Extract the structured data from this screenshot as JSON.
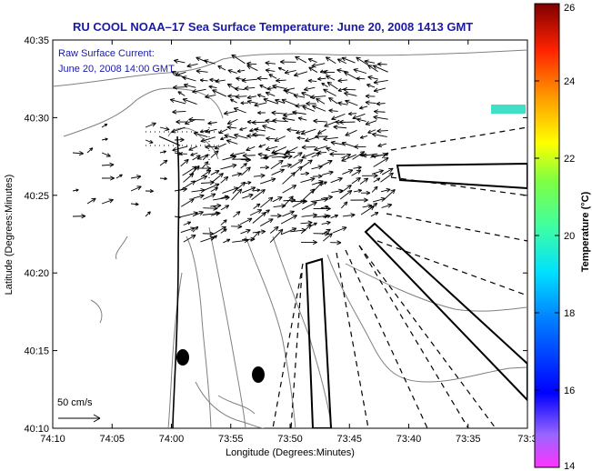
{
  "title": "RU COOL   NOAA–17  Sea Surface Temperature:  June 20, 2008 1413 GMT",
  "legend": {
    "line1": "Raw Surface Current:",
    "line2": "June 20, 2008 14:00 GMT"
  },
  "scale_bar_label": "50 cm/s",
  "axes": {
    "xlabel": "Longitude (Degrees:Minutes)",
    "ylabel": "Latitude (Degrees:Minutes)",
    "x_ticks": [
      "74:10",
      "74:05",
      "74:00",
      "73:55",
      "73:50",
      "73:45",
      "73:40",
      "73:35",
      "73:3"
    ],
    "y_ticks": [
      "40:35",
      "40:30",
      "40:25",
      "40:20",
      "40:15",
      "40:10"
    ]
  },
  "colorbar": {
    "label": "Temperature (°C)",
    "ticks": [
      "26",
      "24",
      "22",
      "20",
      "18",
      "16",
      "14"
    ],
    "min": 14,
    "max": 26
  },
  "colors": {
    "title": "#1a1aa6",
    "land_contour": "#808080",
    "sst_patch": "#40e0c8"
  }
}
